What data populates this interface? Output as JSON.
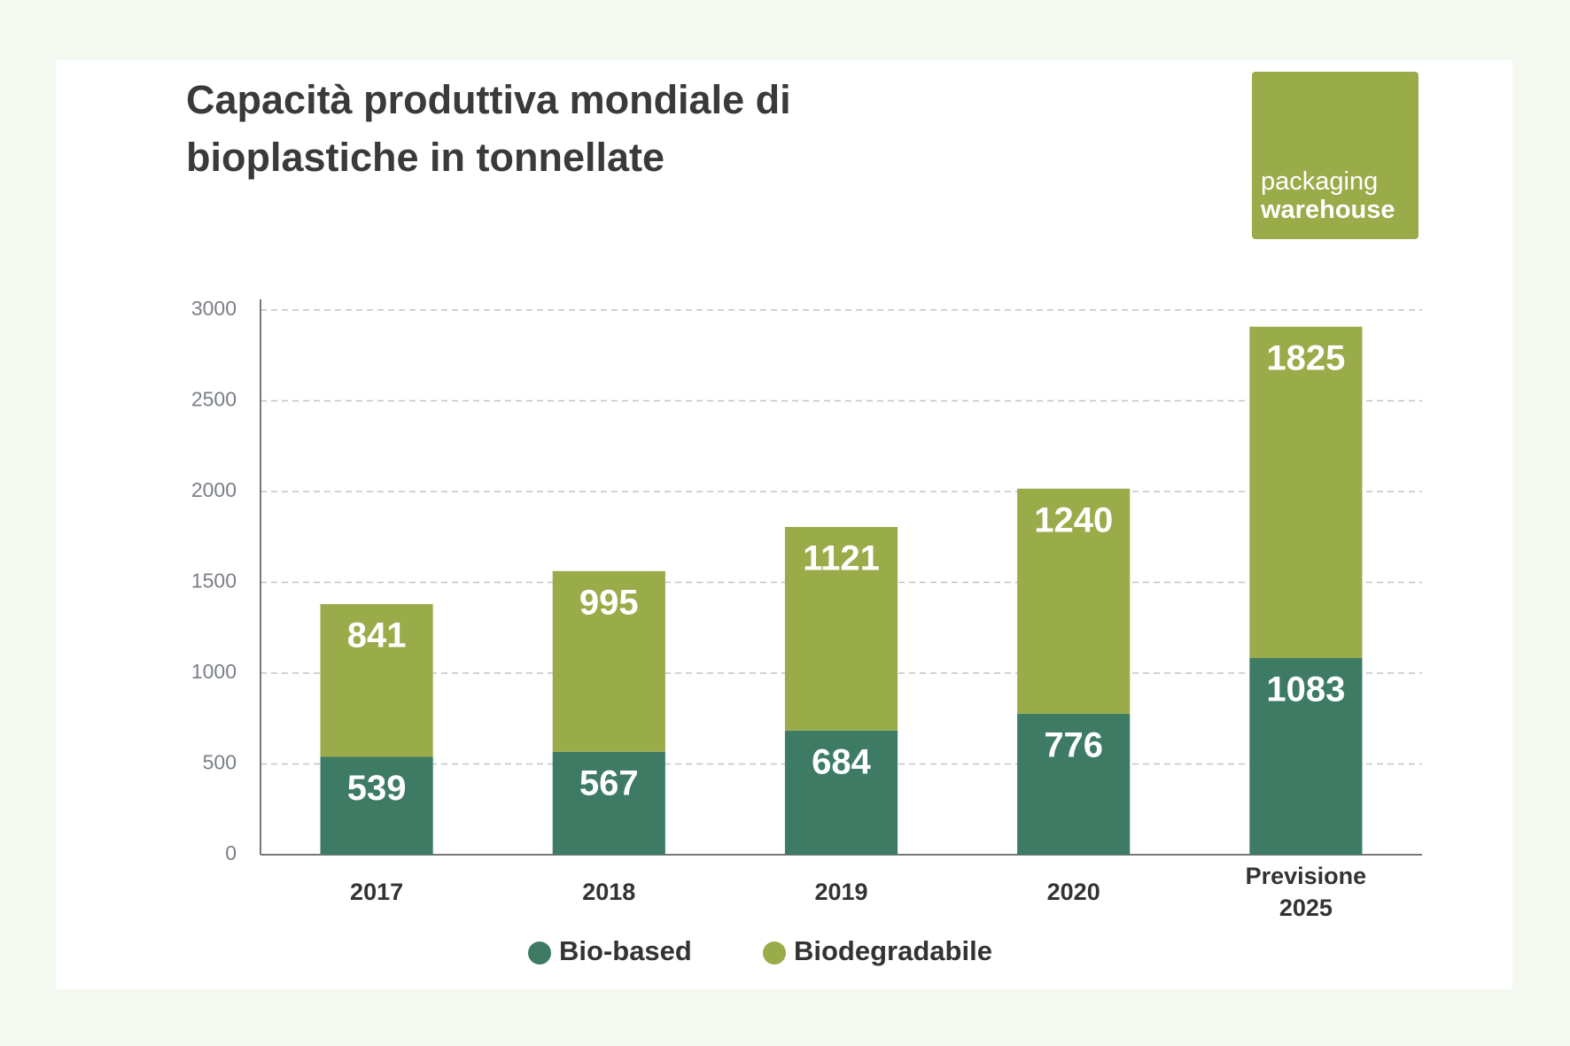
{
  "chart_data": {
    "type": "bar",
    "stacked": true,
    "title": "Capacità produttiva mondiale di bioplastiche in tonnellate",
    "categories": [
      "2017",
      "2018",
      "2019",
      "2020",
      "Previsione 2025"
    ],
    "series": [
      {
        "name": "Bio-based",
        "color": "#3e7b64",
        "values": [
          539,
          567,
          684,
          776,
          1083
        ]
      },
      {
        "name": "Biodegradabile",
        "color": "#9aab4a",
        "values": [
          841,
          995,
          1121,
          1240,
          1825
        ]
      }
    ],
    "ylim": [
      0,
      3000
    ],
    "yticks": [
      0,
      500,
      1000,
      1500,
      2000,
      2500,
      3000
    ],
    "grid": true,
    "legend": "bottom"
  },
  "logo": {
    "lines": [
      "packaging",
      "warehouse"
    ]
  }
}
